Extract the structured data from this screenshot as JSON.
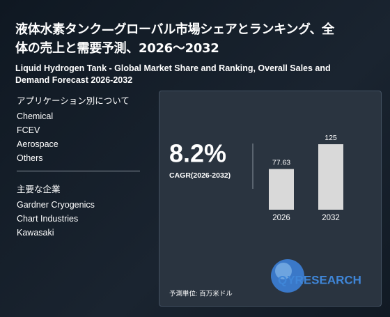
{
  "header": {
    "title": [
      "液体水素タンク—グローバル市場シェアとランキング、全",
      "体の売上と需要予測、2026～2032"
    ],
    "subtitle": [
      "Liquid Hydrogen Tank - Global Market Share and Ranking, Overall Sales and",
      "Demand Forecast 2026-2032"
    ]
  },
  "applications": {
    "heading": "アプリケーション別について",
    "items": [
      "Chemical",
      "FCEV",
      "Aerospace",
      "Others"
    ]
  },
  "companies": {
    "heading": "主要な企業",
    "items": [
      "Gardner Cryogenics",
      "Chart Industries",
      "Kawasaki"
    ]
  },
  "card": {
    "cagr": "8.2%",
    "cagr_label": "CAGR(2026-2032)",
    "unit": "予測単位: 百万米ドル",
    "logo": "QYRESEARCH"
  },
  "chart_data": {
    "type": "bar",
    "categories": [
      "2026",
      "2032"
    ],
    "values": [
      77.63,
      125
    ],
    "color": "#d9d9d9"
  }
}
